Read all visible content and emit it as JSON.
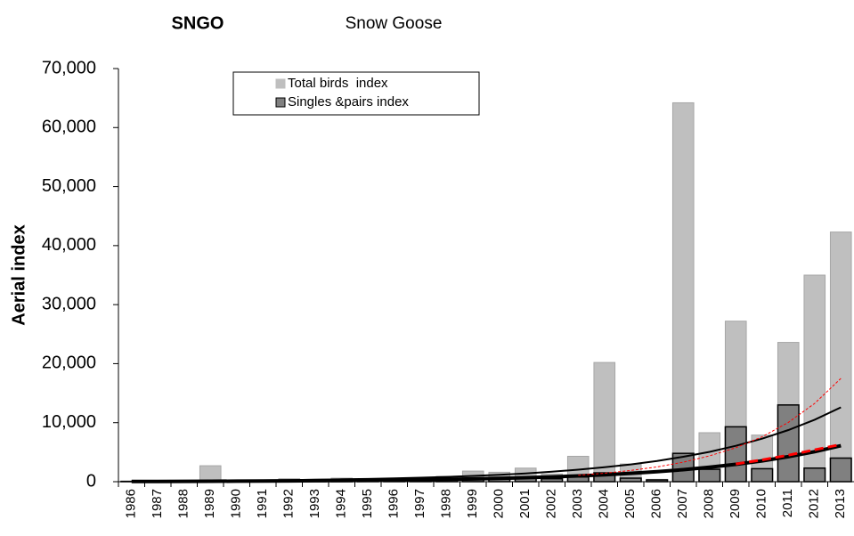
{
  "chart_data": {
    "type": "bar",
    "title": "SNGO",
    "subtitle": "Snow Goose",
    "y_label": "Aerial index",
    "categories": [
      "1986",
      "1987",
      "1988",
      "1989",
      "1990",
      "1991",
      "1992",
      "1993",
      "1994",
      "1995",
      "1996",
      "1997",
      "1998",
      "1999",
      "2000",
      "2001",
      "2002",
      "2003",
      "2004",
      "2005",
      "2006",
      "2007",
      "2008",
      "2009",
      "2010",
      "2011",
      "2012",
      "2013"
    ],
    "series": [
      {
        "name": "Total birds  index",
        "color": "#bfbfbf",
        "stroke": "#a6a6a6",
        "values": [
          100,
          0,
          0,
          2700,
          0,
          0,
          500,
          200,
          600,
          400,
          300,
          500,
          900,
          1800,
          1600,
          2300,
          1300,
          4300,
          20200,
          3000,
          400,
          64200,
          8300,
          27200,
          7900,
          23600,
          35000,
          42300
        ]
      },
      {
        "name": "Singles &pairs index",
        "color": "#808080",
        "stroke": "#000000",
        "values": [
          50,
          0,
          0,
          200,
          0,
          0,
          150,
          100,
          200,
          150,
          100,
          150,
          300,
          500,
          500,
          600,
          500,
          800,
          1500,
          600,
          300,
          4800,
          2100,
          9300,
          2200,
          13000,
          2300,
          4000
        ]
      }
    ],
    "trends": [
      {
        "color": "#000000",
        "width": 2,
        "dash": false,
        "values": [
          90,
          110,
          130,
          160,
          190,
          230,
          270,
          330,
          400,
          470,
          570,
          680,
          820,
          980,
          1180,
          1410,
          1700,
          2040,
          2440,
          2930,
          3520,
          4220,
          5060,
          6080,
          7290,
          8750,
          10500,
          12600
        ]
      },
      {
        "color": "#000000",
        "width": 4,
        "dash": false,
        "values": [
          45,
          50,
          60,
          80,
          90,
          110,
          130,
          160,
          190,
          230,
          270,
          330,
          390,
          470,
          570,
          680,
          820,
          980,
          1180,
          1420,
          1700,
          2040,
          2450,
          2940,
          3530,
          4240,
          5080,
          6100
        ]
      },
      {
        "color": "#ff0000",
        "width": 1,
        "dash": true,
        "values": [
          null,
          null,
          null,
          null,
          null,
          null,
          null,
          null,
          null,
          null,
          null,
          null,
          null,
          null,
          null,
          null,
          null,
          1090,
          1440,
          1900,
          2510,
          3310,
          4370,
          5760,
          7610,
          10040,
          13260,
          17500
        ]
      },
      {
        "color": "#ff0000",
        "width": 3,
        "dash": true,
        "values": [
          null,
          null,
          null,
          null,
          null,
          null,
          null,
          null,
          null,
          null,
          null,
          null,
          null,
          null,
          null,
          null,
          null,
          null,
          null,
          null,
          null,
          null,
          null,
          3000,
          3700,
          4500,
          5400,
          6300
        ]
      }
    ],
    "ylim": [
      0,
      70000
    ],
    "yticks": [
      0,
      {
        "value": 10000,
        "label": "10,000"
      },
      {
        "value": 20000,
        "label": "20,000"
      },
      {
        "value": 30000,
        "label": "30,000"
      },
      {
        "value": 40000,
        "label": "40,000"
      },
      {
        "value": 50000,
        "label": "50,000"
      },
      {
        "value": 60000,
        "label": "60,000"
      },
      {
        "value": 70000,
        "label": "70,000"
      }
    ],
    "legend": "top-left"
  }
}
